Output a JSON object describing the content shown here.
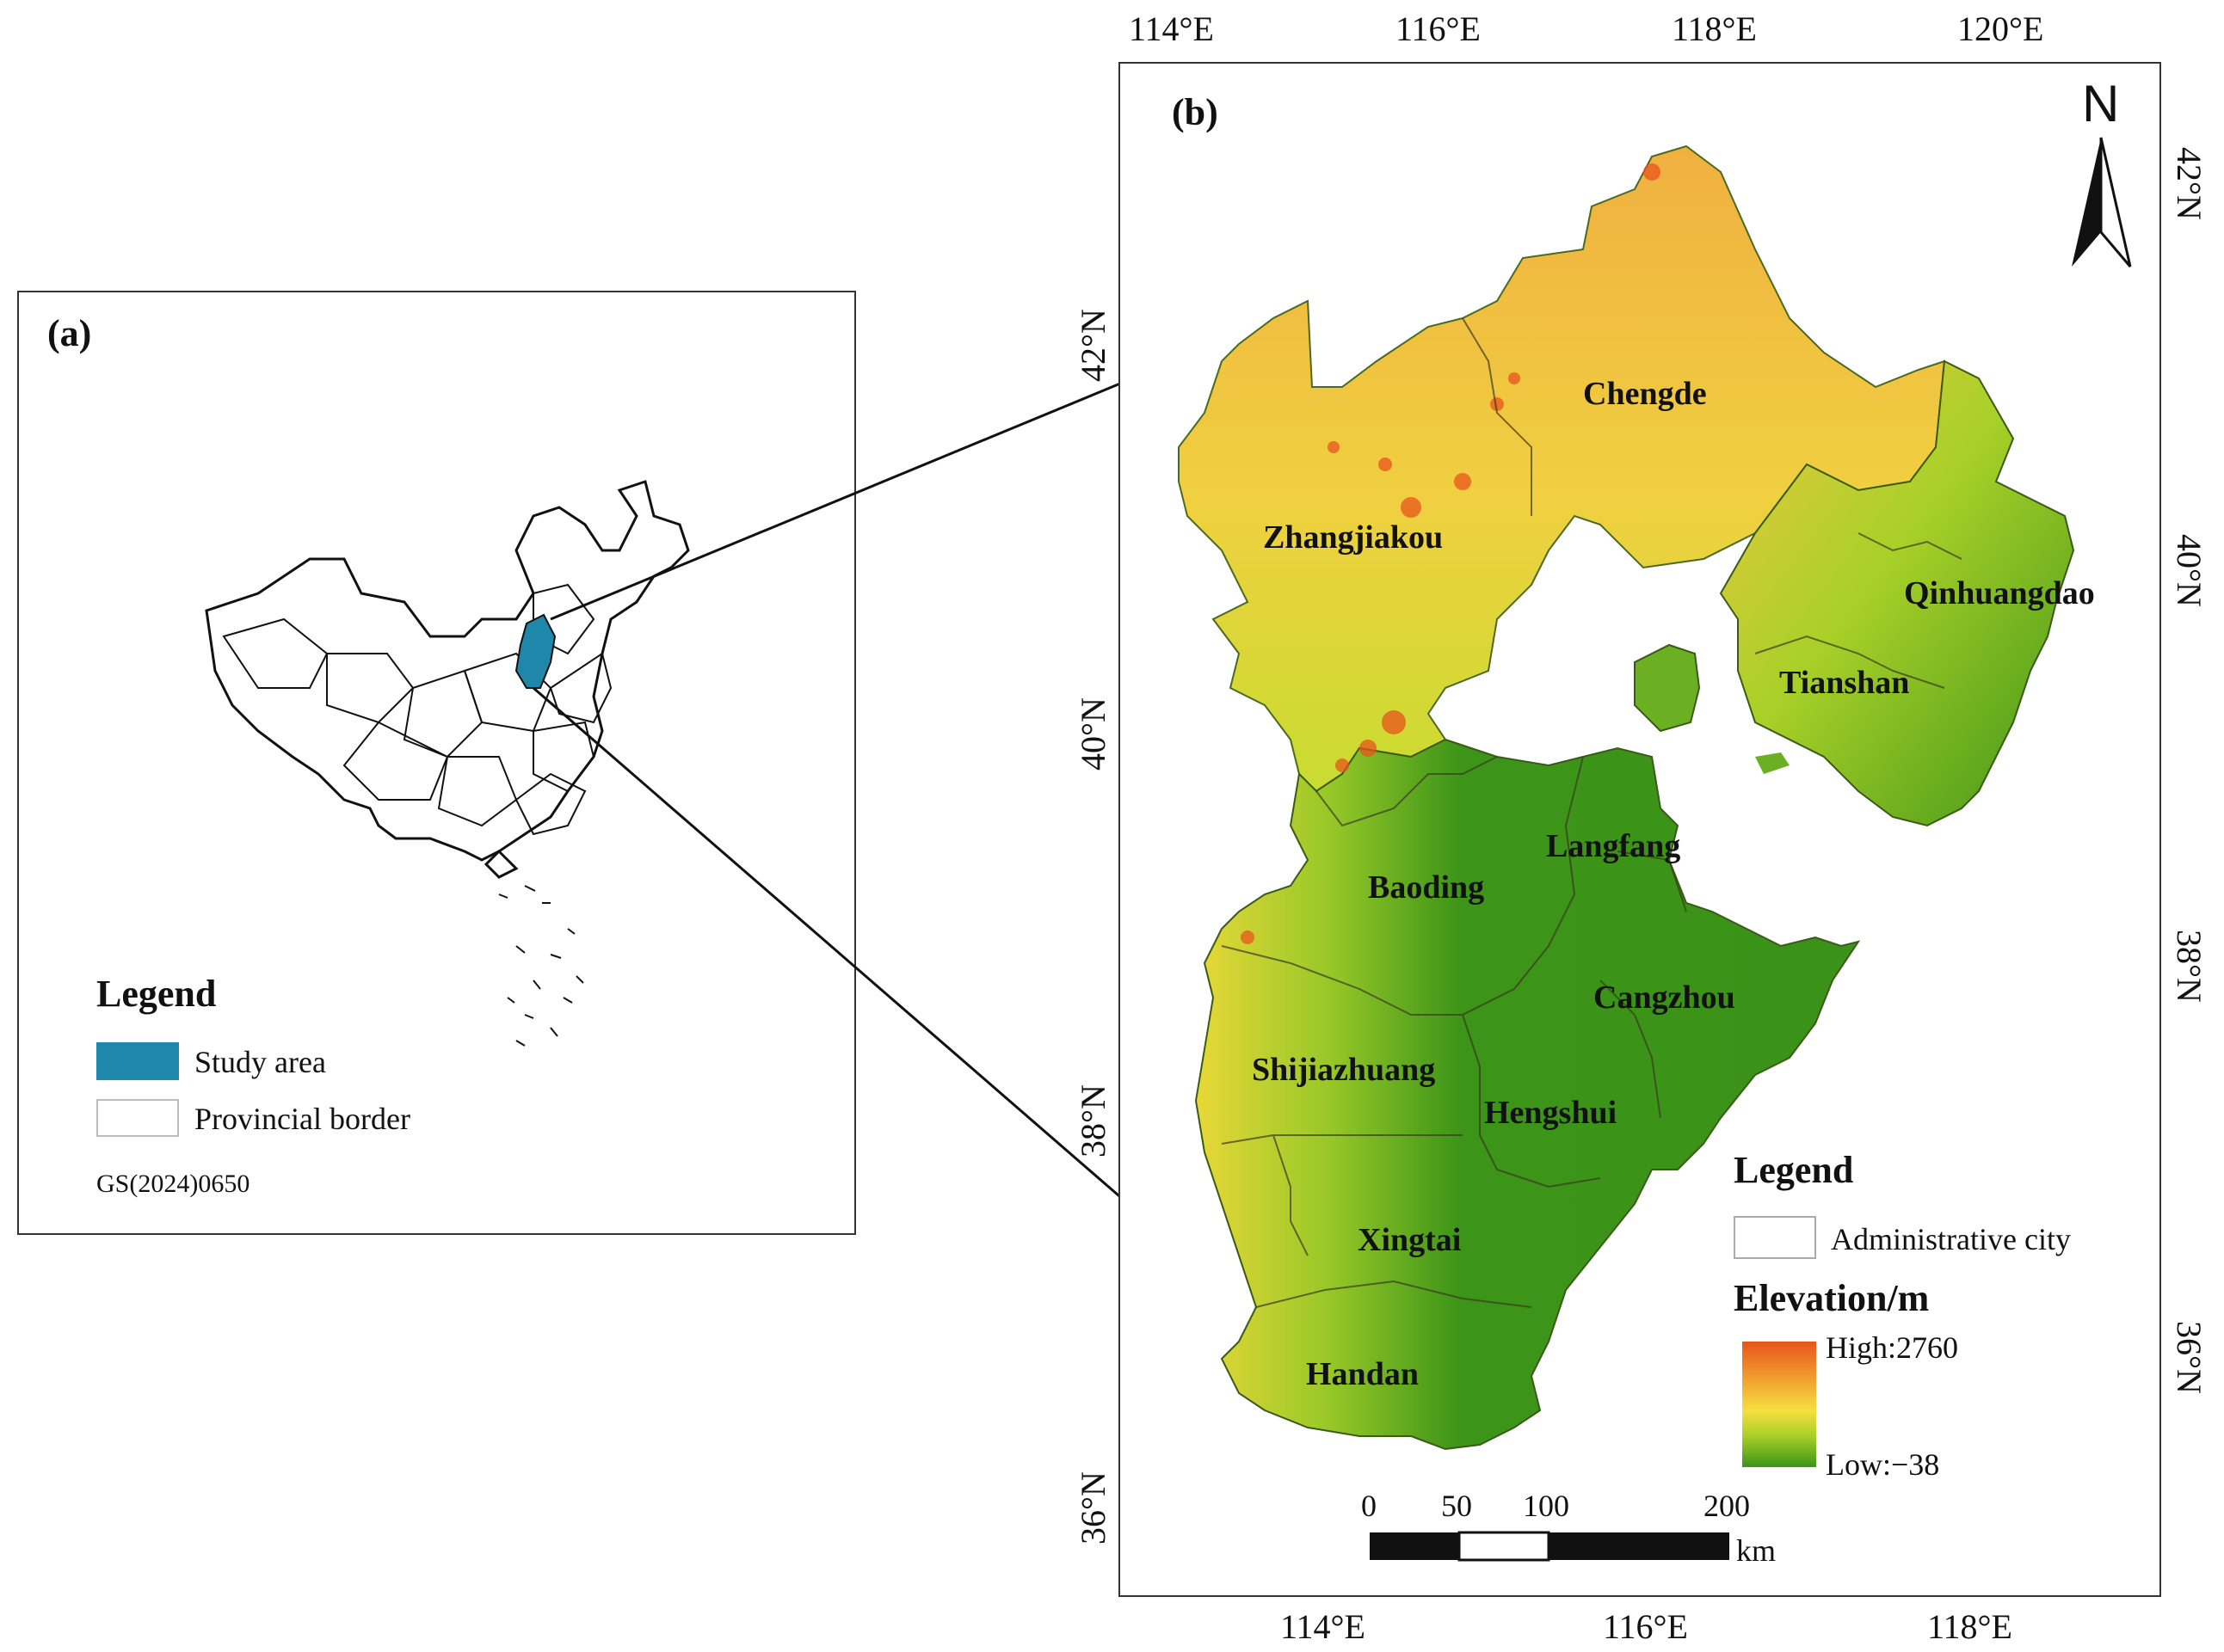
{
  "panel_a": {
    "label": "(a)",
    "legend": {
      "title": "Legend",
      "items": [
        {
          "label": "Study area",
          "color": "#1f87aa"
        },
        {
          "label": "Provincial border",
          "color": "#ffffff"
        }
      ],
      "map_code": "GS(2024)0650"
    }
  },
  "panel_b": {
    "label": "(b)",
    "north_arrow": "N",
    "top_ticks": [
      "114°E",
      "116°E",
      "118°E",
      "120°E"
    ],
    "bottom_ticks": [
      "114°E",
      "116°E",
      "118°E"
    ],
    "left_ticks": [
      "42°N",
      "40°N",
      "38°N",
      "36°N"
    ],
    "right_ticks": [
      "42°N",
      "40°N",
      "38°N",
      "36°N"
    ],
    "cities": [
      "Zhangjiakou",
      "Chengde",
      "Qinhuangdao",
      "Tianshan",
      "Langfang",
      "Baoding",
      "Cangzhou",
      "Shijiazhuang",
      "Hengshui",
      "Xingtai",
      "Handan"
    ],
    "legend": {
      "title": "Legend",
      "admin_label": "Administrative city",
      "elevation_title": "Elevation/m",
      "high_label": "High:2760",
      "low_label": "Low:−38",
      "ramp_colors": [
        "#e8541c",
        "#f0a030",
        "#f5e040",
        "#a8d028",
        "#3c9418"
      ]
    },
    "scale_bar": {
      "ticks": [
        "0",
        "50",
        "100",
        "200"
      ],
      "unit": "km"
    }
  }
}
